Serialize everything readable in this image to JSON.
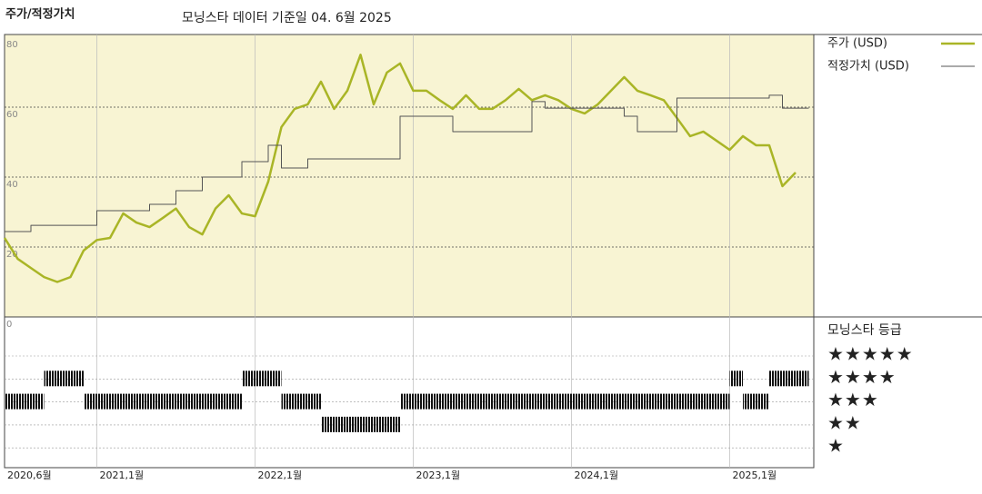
{
  "chart_data": {
    "type": "line",
    "title": "주가/적정가치",
    "subtitle": "모닝스타 데이터 기준일 04. 6월 2025",
    "categories": [
      "2020,6월",
      null,
      null,
      null,
      null,
      null,
      null,
      "2021,1월",
      null,
      null,
      null,
      null,
      null,
      null,
      null,
      null,
      null,
      null,
      null,
      "2022,1월",
      null,
      null,
      null,
      null,
      null,
      null,
      null,
      null,
      null,
      null,
      null,
      "2023,1월",
      null,
      null,
      null,
      null,
      null,
      null,
      null,
      null,
      null,
      null,
      null,
      "2024,1월",
      null,
      null,
      null,
      null,
      null,
      null,
      null,
      null,
      null,
      null,
      null,
      "2025,1월",
      null,
      null,
      null,
      null,
      null
    ],
    "series": [
      {
        "name": "주가 (USD)",
        "color": "#a9b526",
        "values": [
          22.6,
          16.6,
          14,
          11.4,
          10,
          11.4,
          19,
          22,
          22.6,
          29.6,
          27,
          25.7,
          28.3,
          31,
          25.7,
          23.6,
          31,
          34.8,
          29.6,
          28.8,
          38.7,
          54.3,
          59.5,
          60.8,
          67.3,
          59.5,
          64.7,
          75,
          60.8,
          69.9,
          72.5,
          64.7,
          64.7,
          62,
          59.5,
          63.4,
          59.5,
          59.5,
          62,
          65.2,
          62,
          63.4,
          62,
          59.5,
          58.2,
          60.8,
          64.7,
          68.6,
          64.7,
          63.4,
          62,
          56.9,
          51.7,
          53,
          50.4,
          47.8,
          51.7,
          49.1,
          49.1,
          37.4,
          41.3
        ]
      },
      {
        "name": "적정가치 (USD)",
        "color": "#555555",
        "values": [
          24.4,
          24.4,
          26.2,
          26.2,
          26.2,
          26.2,
          26.2,
          30.4,
          30.4,
          30.4,
          30.4,
          32.2,
          32.2,
          36.1,
          36.1,
          40,
          40,
          40,
          44.4,
          44.4,
          49.1,
          42.6,
          42.6,
          45.2,
          45.2,
          45.2,
          45.2,
          45.2,
          45.2,
          45.2,
          57.4,
          57.4,
          57.4,
          57.4,
          53,
          53,
          53,
          53,
          53,
          53,
          61.6,
          59.7,
          59.7,
          59.7,
          59.7,
          59.7,
          59.7,
          57.4,
          53,
          53,
          53,
          62.6,
          62.6,
          62.6,
          62.6,
          62.6,
          62.6,
          62.6,
          63.4,
          59.7,
          59.7
        ]
      }
    ],
    "ylim": [
      0,
      80
    ],
    "yticks": [
      0,
      20,
      40,
      60,
      80
    ],
    "grid": true,
    "rating": {
      "name": "모닝스타 등급",
      "levels": [
        "★★★★★",
        "★★★★",
        "★★★",
        "★★",
        "★"
      ],
      "values": [
        3,
        3,
        3,
        4,
        4,
        4,
        3,
        3,
        3,
        3,
        3,
        3,
        3,
        3,
        3,
        3,
        3,
        3,
        4,
        4,
        4,
        3,
        3,
        3,
        2,
        2,
        2,
        2,
        2,
        2,
        3,
        3,
        3,
        3,
        3,
        3,
        3,
        3,
        3,
        3,
        3,
        3,
        3,
        3,
        3,
        3,
        3,
        3,
        3,
        3,
        3,
        3,
        3,
        3,
        3,
        4,
        3,
        3,
        4,
        4,
        4
      ]
    }
  }
}
